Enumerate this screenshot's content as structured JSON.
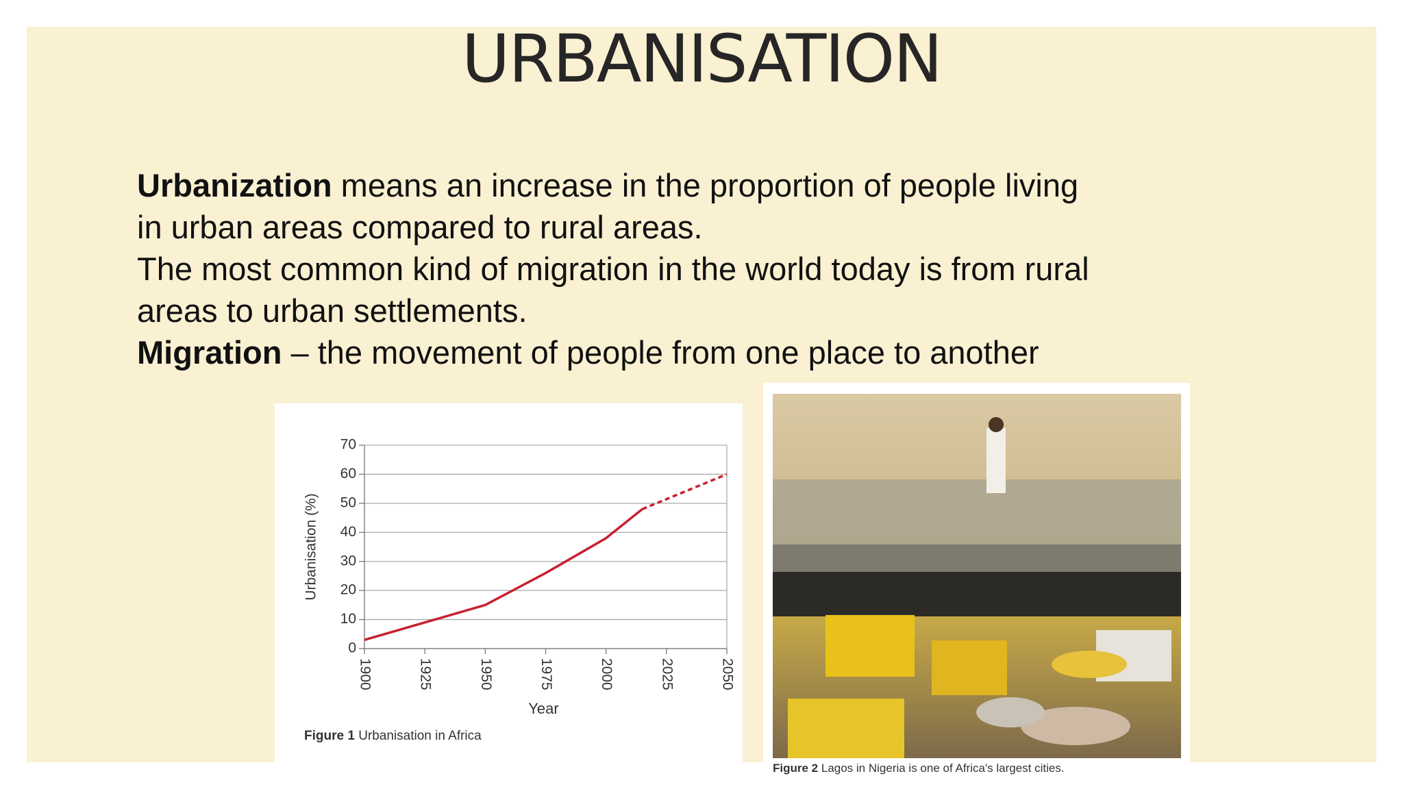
{
  "slide": {
    "title": "URBANISATION",
    "paragraphs": [
      {
        "bold": "Urbanization",
        "text": " means an increase in the proportion of people living in urban areas compared to rural areas."
      },
      {
        "text": "The most common kind of migration in the world today is from rural areas to urban settlements."
      },
      {
        "bold": "Migration",
        "text": " – the movement of people from one place to another"
      }
    ],
    "figure2": {
      "label": "Figure 2",
      "caption": "Lagos in Nigeria is one of Africa's largest cities."
    }
  },
  "chart_data": {
    "type": "line",
    "caption_label": "Figure 1",
    "caption": "Urbanisation in Africa",
    "x_label": "Year",
    "y_label": "Urbanisation (%)",
    "x": [
      1900,
      1925,
      1950,
      1975,
      2000,
      2015,
      2050
    ],
    "series": [
      {
        "color": "#c8202e",
        "dashed": false,
        "values": [
          3,
          9,
          15,
          26,
          38,
          48,
          null
        ]
      },
      {
        "color": "#c8202e",
        "dashed": true,
        "values": [
          null,
          null,
          null,
          null,
          null,
          48,
          60
        ]
      }
    ],
    "xlim": [
      1900,
      2050
    ],
    "xticks": [
      1900,
      1925,
      1950,
      1975,
      2000,
      2025,
      2050
    ],
    "ylim": [
      0,
      70
    ],
    "yticks": [
      0,
      10,
      20,
      30,
      40,
      50,
      60,
      70
    ],
    "grid": true
  }
}
